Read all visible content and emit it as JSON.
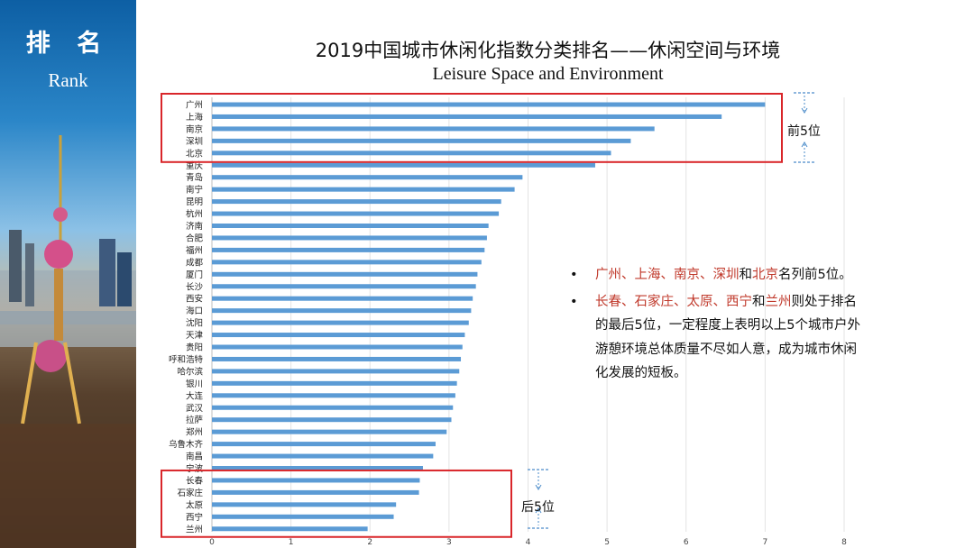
{
  "sidebar": {
    "title": "排 名",
    "subtitle": "Rank"
  },
  "chart_data": {
    "type": "bar",
    "orientation": "horizontal",
    "title": "2019中国城市休闲化指数分类排名——休闲空间与环境",
    "subtitle": "Leisure Space and Environment",
    "categories": [
      "广州",
      "上海",
      "南京",
      "深圳",
      "北京",
      "重庆",
      "青岛",
      "南宁",
      "昆明",
      "杭州",
      "济南",
      "合肥",
      "福州",
      "成都",
      "厦门",
      "长沙",
      "西安",
      "海口",
      "沈阳",
      "天津",
      "贵阳",
      "呼和浩特",
      "哈尔滨",
      "银川",
      "大连",
      "武汉",
      "拉萨",
      "郑州",
      "乌鲁木齐",
      "南昌",
      "宁波",
      "长春",
      "石家庄",
      "太原",
      "西宁",
      "兰州"
    ],
    "values": [
      7.0,
      6.45,
      5.6,
      5.3,
      5.05,
      4.85,
      3.93,
      3.83,
      3.66,
      3.63,
      3.5,
      3.48,
      3.45,
      3.41,
      3.36,
      3.34,
      3.3,
      3.28,
      3.25,
      3.2,
      3.17,
      3.15,
      3.13,
      3.1,
      3.08,
      3.05,
      3.03,
      2.97,
      2.83,
      2.8,
      2.67,
      2.63,
      2.62,
      2.33,
      2.3,
      1.97
    ],
    "xlim": [
      0,
      8
    ],
    "xticks": [
      "0",
      "1",
      "2",
      "3",
      "4",
      "5",
      "6",
      "7",
      "8"
    ],
    "bar_color": "#5b9bd5",
    "highlight_color": "#d9262a",
    "annotations": {
      "top": "前5位",
      "bottom": "后5位"
    }
  },
  "notes": {
    "bullet_glyph": "•",
    "b1": {
      "c1": "广州",
      "s1": "、",
      "c2": "上海",
      "s2": "、",
      "c3": "南京",
      "s3": "、",
      "c4": "深圳",
      "s4": "和",
      "c5": "北京",
      "rest": "名列前5位。"
    },
    "b2": {
      "c1": "长春",
      "s1": "、",
      "c2": "石家庄",
      "s2": "、",
      "c3": "太原",
      "s3": "、",
      "c4": "西宁",
      "s4": "和",
      "c5": "兰州",
      "rest": "则处于排名的最后5位，一定程度上表明以上5个城市户外游憩环境总体质量不尽如人意，成为城市休闲化发展的短板。"
    }
  }
}
